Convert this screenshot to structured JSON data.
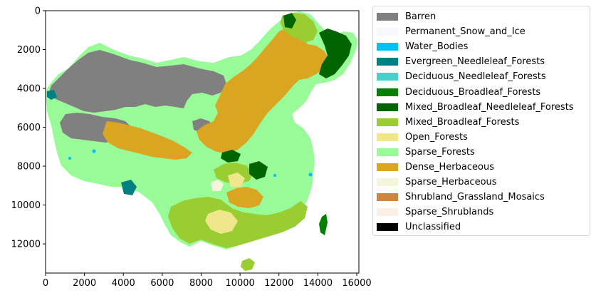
{
  "map": {
    "type": "raster-land-cover-map",
    "x_ticks": [
      "0",
      "2000",
      "4000",
      "6000",
      "8000",
      "10000",
      "12000",
      "14000",
      "16000"
    ],
    "y_ticks": [
      "0",
      "2000",
      "4000",
      "6000",
      "8000",
      "10000",
      "12000"
    ],
    "x_range": [
      0,
      16000
    ],
    "y_range": [
      0,
      13500
    ]
  },
  "legend": {
    "items": [
      {
        "label": "Barren",
        "color": "#808080"
      },
      {
        "label": "Permanent_Snow_and_Ice",
        "color": "#f8f8ff"
      },
      {
        "label": "Water_Bodies",
        "color": "#00bfff"
      },
      {
        "label": "Evergreen_Needleleaf_Forests",
        "color": "#008080"
      },
      {
        "label": "Deciduous_Needleleaf_Forests",
        "color": "#48d1cc"
      },
      {
        "label": "Deciduous_Broadleaf_Forests",
        "color": "#008000"
      },
      {
        "label": "Mixed_Broadleaf_Needleleaf_Forests",
        "color": "#006400"
      },
      {
        "label": "Mixed_Broadleaf_Forests",
        "color": "#9acd32"
      },
      {
        "label": "Open_Forests",
        "color": "#f0e68c"
      },
      {
        "label": "Sparse_Forests",
        "color": "#98fb98"
      },
      {
        "label": "Dense_Herbaceous",
        "color": "#daa520"
      },
      {
        "label": "Sparse_Herbaceous",
        "color": "#f5f5dc"
      },
      {
        "label": "Shrubland_Grassland_Mosaics",
        "color": "#cd853f"
      },
      {
        "label": "Sparse_Shrublands",
        "color": "#faf0e6"
      },
      {
        "label": "Unclassified",
        "color": "#000000"
      }
    ]
  }
}
